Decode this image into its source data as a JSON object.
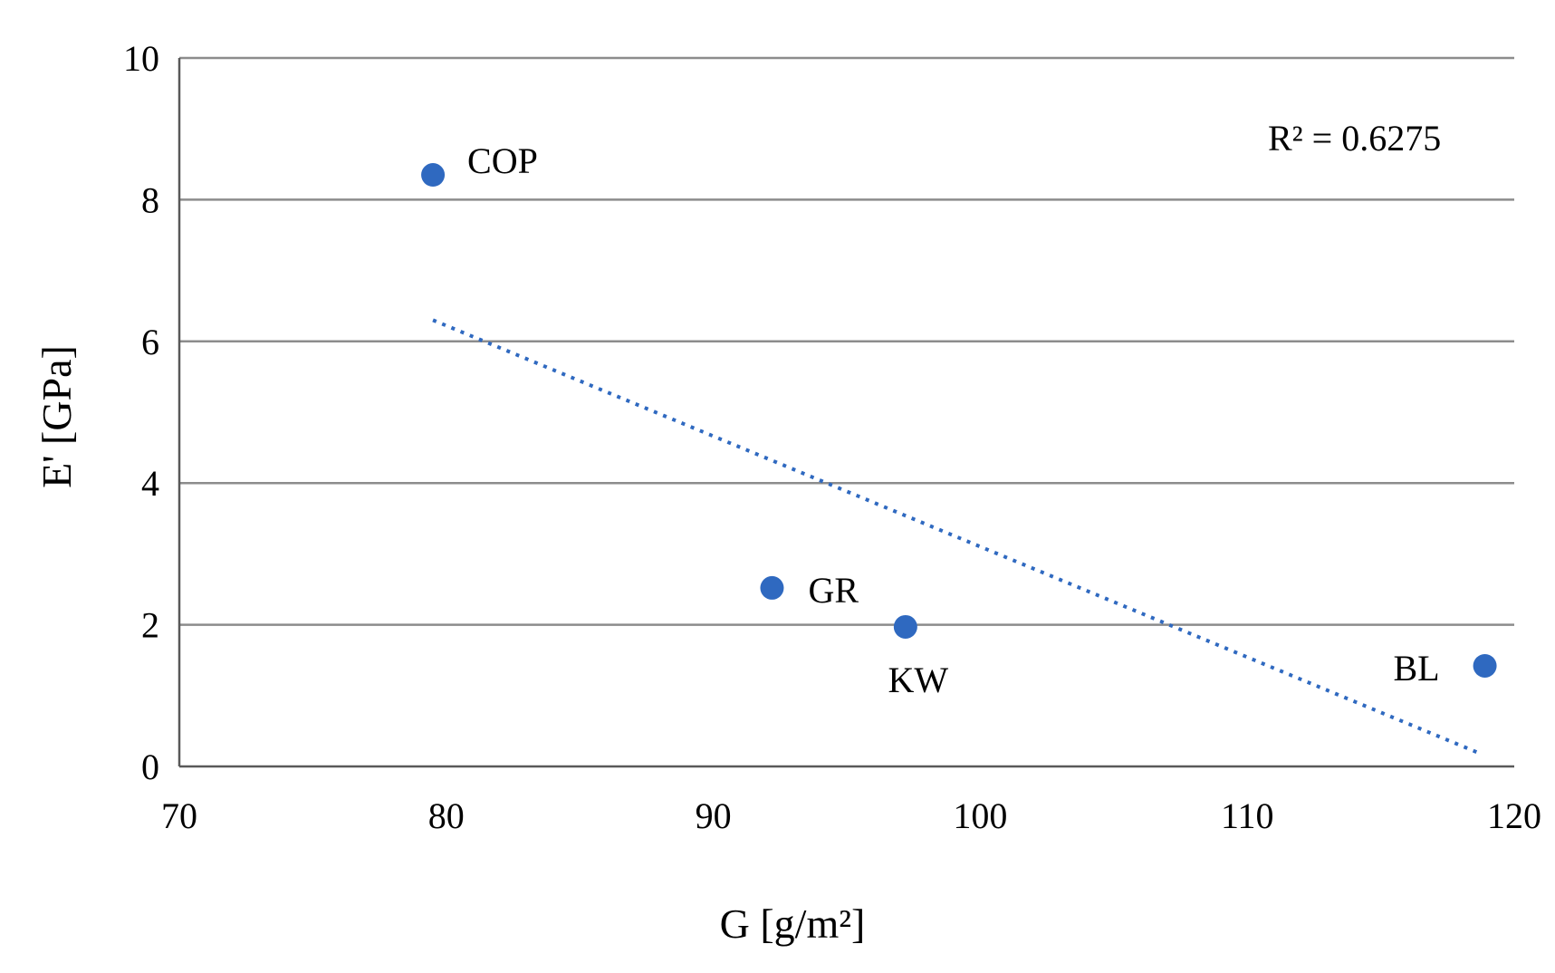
{
  "chart_data": {
    "type": "scatter",
    "title": "",
    "xlabel": "G [g/m²]",
    "ylabel": "E' [GPa]",
    "xlim": [
      70,
      120
    ],
    "ylim": [
      0,
      10
    ],
    "x_ticks": [
      70,
      80,
      90,
      100,
      110,
      120
    ],
    "y_ticks": [
      0,
      2,
      4,
      6,
      8,
      10
    ],
    "grid": "horizontal",
    "marker_color": "#2f69c0",
    "points": [
      {
        "label": "COP",
        "x": 79.5,
        "y": 8.35
      },
      {
        "label": "GR",
        "x": 92.2,
        "y": 2.52
      },
      {
        "label": "KW",
        "x": 97.2,
        "y": 1.97
      },
      {
        "label": "BL",
        "x": 118.9,
        "y": 1.42
      }
    ],
    "trendline": {
      "type": "linear",
      "style": "dotted",
      "x": [
        79.5,
        118.8
      ],
      "y": [
        6.3,
        0.17
      ],
      "r_squared_label": "R² = 0.6275"
    }
  }
}
